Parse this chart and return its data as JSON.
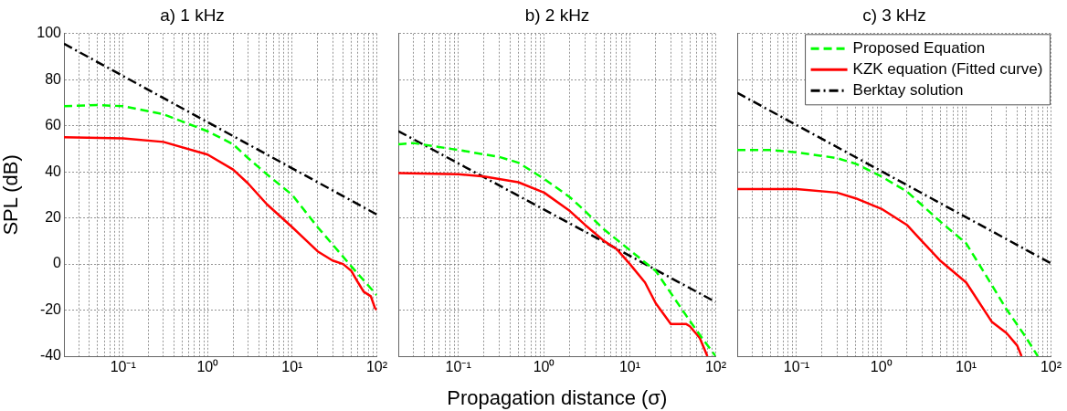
{
  "chart_data": [
    {
      "type": "line",
      "title": "a) 1 kHz",
      "ylabel": "SPL (dB)",
      "log": "x",
      "grid": true,
      "legend": false,
      "xlim": [
        0.02,
        100
      ],
      "ylim": [
        -40,
        100
      ],
      "yticks": [
        -40,
        -20,
        0,
        20,
        40,
        60,
        80,
        100
      ],
      "xticks": [
        {
          "value": 0.02,
          "label": null
        },
        {
          "value": 0.03,
          "label": null
        },
        {
          "value": 0.04,
          "label": null
        },
        {
          "value": 0.05,
          "label": null
        },
        {
          "value": 0.06,
          "label": null
        },
        {
          "value": 0.07,
          "label": null
        },
        {
          "value": 0.08,
          "label": null
        },
        {
          "value": 0.09,
          "label": null
        },
        {
          "value": 0.1,
          "label": "10⁻¹"
        },
        {
          "value": 0.2,
          "label": null
        },
        {
          "value": 0.3,
          "label": null
        },
        {
          "value": 0.4,
          "label": null
        },
        {
          "value": 0.5,
          "label": null
        },
        {
          "value": 0.6,
          "label": null
        },
        {
          "value": 0.7,
          "label": null
        },
        {
          "value": 0.8,
          "label": null
        },
        {
          "value": 0.9,
          "label": null
        },
        {
          "value": 1,
          "label": "10⁰"
        },
        {
          "value": 2,
          "label": null
        },
        {
          "value": 3,
          "label": null
        },
        {
          "value": 4,
          "label": null
        },
        {
          "value": 5,
          "label": null
        },
        {
          "value": 6,
          "label": null
        },
        {
          "value": 7,
          "label": null
        },
        {
          "value": 8,
          "label": null
        },
        {
          "value": 9,
          "label": null
        },
        {
          "value": 10,
          "label": "10¹"
        },
        {
          "value": 20,
          "label": null
        },
        {
          "value": 30,
          "label": null
        },
        {
          "value": 40,
          "label": null
        },
        {
          "value": 50,
          "label": null
        },
        {
          "value": 60,
          "label": null
        },
        {
          "value": 70,
          "label": null
        },
        {
          "value": 80,
          "label": null
        },
        {
          "value": 90,
          "label": null
        },
        {
          "value": 100,
          "label": "10²"
        }
      ],
      "series": [
        {
          "color": "#00ff00",
          "line_style": "dashed",
          "x": [
            0.02,
            0.05,
            0.1,
            0.3,
            1,
            2,
            3,
            5,
            10,
            20,
            50,
            100
          ],
          "values": [
            68.5,
            69,
            68.5,
            65,
            57.6,
            52,
            46,
            39,
            30,
            16,
            -1,
            -13.5
          ]
        },
        {
          "color": "#ff0000",
          "line_style": "solid",
          "x": [
            0.02,
            0.1,
            0.3,
            1,
            2,
            3,
            5,
            10,
            20,
            30,
            40,
            50,
            60,
            70,
            85,
            95,
            100
          ],
          "values": [
            55,
            54.5,
            53,
            47.5,
            41,
            35,
            26,
            16,
            5.5,
            1.5,
            0,
            -3,
            -8,
            -12,
            -14,
            -19,
            -20
          ]
        },
        {
          "color": "#000000",
          "line_style": "dashdot",
          "x": [
            0.02,
            100
          ],
          "values": [
            95.6,
            21.5
          ]
        }
      ]
    },
    {
      "type": "line",
      "title": "b) 2 kHz",
      "xlabel": "Propagation distance (σ)",
      "log": "x",
      "grid": true,
      "legend": false,
      "tick_labels": "x",
      "xlim": [
        0.02,
        100
      ],
      "ylim": [
        -40,
        100
      ],
      "yticks": [
        -40,
        -20,
        0,
        20,
        40,
        60,
        80,
        100
      ],
      "xticks": [
        {
          "value": 0.02,
          "label": null
        },
        {
          "value": 0.03,
          "label": null
        },
        {
          "value": 0.04,
          "label": null
        },
        {
          "value": 0.05,
          "label": null
        },
        {
          "value": 0.06,
          "label": null
        },
        {
          "value": 0.07,
          "label": null
        },
        {
          "value": 0.08,
          "label": null
        },
        {
          "value": 0.09,
          "label": null
        },
        {
          "value": 0.1,
          "label": "10⁻¹"
        },
        {
          "value": 0.2,
          "label": null
        },
        {
          "value": 0.3,
          "label": null
        },
        {
          "value": 0.4,
          "label": null
        },
        {
          "value": 0.5,
          "label": null
        },
        {
          "value": 0.6,
          "label": null
        },
        {
          "value": 0.7,
          "label": null
        },
        {
          "value": 0.8,
          "label": null
        },
        {
          "value": 0.9,
          "label": null
        },
        {
          "value": 1,
          "label": "10⁰"
        },
        {
          "value": 2,
          "label": null
        },
        {
          "value": 3,
          "label": null
        },
        {
          "value": 4,
          "label": null
        },
        {
          "value": 5,
          "label": null
        },
        {
          "value": 6,
          "label": null
        },
        {
          "value": 7,
          "label": null
        },
        {
          "value": 8,
          "label": null
        },
        {
          "value": 9,
          "label": null
        },
        {
          "value": 10,
          "label": "10¹"
        },
        {
          "value": 20,
          "label": null
        },
        {
          "value": 30,
          "label": null
        },
        {
          "value": 40,
          "label": null
        },
        {
          "value": 50,
          "label": null
        },
        {
          "value": 60,
          "label": null
        },
        {
          "value": 70,
          "label": null
        },
        {
          "value": 80,
          "label": null
        },
        {
          "value": 90,
          "label": null
        },
        {
          "value": 100,
          "label": "10²"
        }
      ],
      "series": [
        {
          "color": "#00ff00",
          "line_style": "dashed",
          "x": [
            0.02,
            0.03,
            0.1,
            0.3,
            0.5,
            1,
            2,
            3,
            5,
            10,
            20,
            50,
            70,
            100
          ],
          "values": [
            52,
            52.5,
            49.5,
            46.5,
            44,
            37,
            29,
            23,
            15,
            6,
            -3,
            -24.7,
            -32.3,
            -40
          ]
        },
        {
          "color": "#ff0000",
          "line_style": "solid",
          "x": [
            0.02,
            0.1,
            0.2,
            0.5,
            1,
            2,
            3,
            5,
            7,
            10,
            15,
            20,
            30,
            45,
            50,
            65,
            80
          ],
          "values": [
            39.5,
            39,
            38,
            35.5,
            31,
            23,
            17,
            10,
            6.5,
            0,
            -8,
            -17,
            -26,
            -26,
            -27,
            -32,
            -40
          ]
        },
        {
          "color": "#000000",
          "line_style": "dashdot",
          "x": [
            0.02,
            100
          ],
          "values": [
            57.7,
            -16.5
          ]
        }
      ]
    },
    {
      "type": "line",
      "title": "c) 3 kHz",
      "log": "x",
      "grid": true,
      "legend": "top right",
      "tick_labels": "x",
      "xlim": [
        0.02,
        100
      ],
      "ylim": [
        -40,
        100
      ],
      "yticks": [
        -40,
        -20,
        0,
        20,
        40,
        60,
        80,
        100
      ],
      "xticks": [
        {
          "value": 0.02,
          "label": null
        },
        {
          "value": 0.03,
          "label": null
        },
        {
          "value": 0.04,
          "label": null
        },
        {
          "value": 0.05,
          "label": null
        },
        {
          "value": 0.06,
          "label": null
        },
        {
          "value": 0.07,
          "label": null
        },
        {
          "value": 0.08,
          "label": null
        },
        {
          "value": 0.09,
          "label": null
        },
        {
          "value": 0.1,
          "label": "10⁻¹"
        },
        {
          "value": 0.2,
          "label": null
        },
        {
          "value": 0.3,
          "label": null
        },
        {
          "value": 0.4,
          "label": null
        },
        {
          "value": 0.5,
          "label": null
        },
        {
          "value": 0.6,
          "label": null
        },
        {
          "value": 0.7,
          "label": null
        },
        {
          "value": 0.8,
          "label": null
        },
        {
          "value": 0.9,
          "label": null
        },
        {
          "value": 1,
          "label": "10⁰"
        },
        {
          "value": 2,
          "label": null
        },
        {
          "value": 3,
          "label": null
        },
        {
          "value": 4,
          "label": null
        },
        {
          "value": 5,
          "label": null
        },
        {
          "value": 6,
          "label": null
        },
        {
          "value": 7,
          "label": null
        },
        {
          "value": 8,
          "label": null
        },
        {
          "value": 9,
          "label": null
        },
        {
          "value": 10,
          "label": "10¹"
        },
        {
          "value": 20,
          "label": null
        },
        {
          "value": 30,
          "label": null
        },
        {
          "value": 40,
          "label": null
        },
        {
          "value": 50,
          "label": null
        },
        {
          "value": 60,
          "label": null
        },
        {
          "value": 70,
          "label": null
        },
        {
          "value": 80,
          "label": null
        },
        {
          "value": 90,
          "label": null
        },
        {
          "value": 100,
          "label": "10²"
        }
      ],
      "series": [
        {
          "name": "Proposed Equation",
          "color": "#00ff00",
          "line_style": "dashed",
          "x": [
            0.02,
            0.05,
            0.1,
            0.3,
            0.5,
            1,
            2,
            5,
            10,
            20,
            30,
            50,
            70
          ],
          "values": [
            49.5,
            49.5,
            48.5,
            46,
            43.5,
            38,
            31.5,
            18.3,
            9,
            -9,
            -19.7,
            -31.5,
            -40
          ]
        },
        {
          "name": "KZK equation (Fitted curve)",
          "color": "#ff0000",
          "line_style": "solid",
          "x": [
            0.02,
            0.1,
            0.3,
            0.5,
            1,
            2,
            3,
            5,
            10,
            20,
            30,
            40,
            45
          ],
          "values": [
            32.5,
            32.5,
            31,
            28.5,
            24,
            17,
            10,
            1.3,
            -8,
            -25,
            -30,
            -35.4,
            -40
          ]
        },
        {
          "name": "Berktay solution",
          "color": "#000000",
          "line_style": "dashdot",
          "x": [
            0.02,
            100
          ],
          "values": [
            74.3,
            0.3
          ]
        }
      ]
    }
  ]
}
